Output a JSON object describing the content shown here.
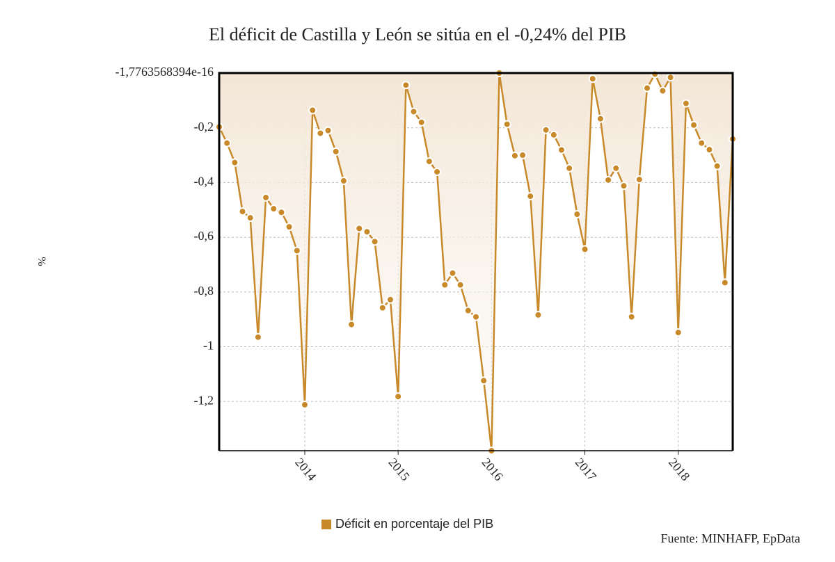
{
  "chart_data": {
    "type": "line",
    "title": "El déficit de Castilla y León se sitúa en el -0,24% del PIB",
    "y_label": "%",
    "source": "Fuente: MINHAFP, EpData",
    "x": [
      "2013-02",
      "2013-03",
      "2013-04",
      "2013-05",
      "2013-06",
      "2013-07",
      "2013-08",
      "2013-09",
      "2013-10",
      "2013-11",
      "2013-12",
      "2014-01",
      "2014-02",
      "2014-03",
      "2014-04",
      "2014-05",
      "2014-06",
      "2014-07",
      "2014-08",
      "2014-09",
      "2014-10",
      "2014-11",
      "2014-12",
      "2015-01",
      "2015-02",
      "2015-03",
      "2015-04",
      "2015-05",
      "2015-06",
      "2015-07",
      "2015-08",
      "2015-09",
      "2015-10",
      "2015-11",
      "2015-12",
      "2016-01",
      "2016-02",
      "2016-03",
      "2016-04",
      "2016-05",
      "2016-06",
      "2016-07",
      "2016-08",
      "2016-09",
      "2016-10",
      "2016-11",
      "2016-12",
      "2017-01",
      "2017-02",
      "2017-03",
      "2017-04",
      "2017-05",
      "2017-06",
      "2017-07",
      "2017-08",
      "2017-09",
      "2017-10",
      "2017-11",
      "2017-12",
      "2018-01",
      "2018-02",
      "2018-03",
      "2018-04",
      "2018-05",
      "2018-06",
      "2018-07",
      "2018-08"
    ],
    "series": [
      {
        "name": "Déficit en porcentaje del PIB",
        "color": "#c8892a",
        "values": [
          -0.197,
          -0.256,
          -0.327,
          -0.506,
          -0.529,
          -0.965,
          -0.455,
          -0.496,
          -0.509,
          -0.562,
          -0.649,
          -1.212,
          -0.136,
          -0.22,
          -0.21,
          -0.287,
          -0.394,
          -0.919,
          -0.568,
          -0.58,
          -0.616,
          -0.858,
          -0.828,
          -1.182,
          -0.044,
          -0.141,
          -0.18,
          -0.323,
          -0.361,
          -0.774,
          -0.731,
          -0.774,
          -0.868,
          -0.891,
          -1.124,
          -1.38,
          0,
          -0.187,
          -0.302,
          -0.3,
          -0.45,
          -0.884,
          -0.208,
          -0.226,
          -0.281,
          -0.348,
          -0.516,
          -0.644,
          -0.021,
          -0.167,
          -0.391,
          -0.348,
          -0.412,
          -0.891,
          -0.389,
          -0.055,
          -0.004,
          -0.065,
          -0.016,
          -0.948,
          -0.111,
          -0.19,
          -0.256,
          -0.28,
          -0.34,
          -0.766,
          -0.241
        ]
      }
    ],
    "xlim": [
      "2013-02",
      "2018-08"
    ],
    "xticks": [
      "2014",
      "2015",
      "2016",
      "2017",
      "2018"
    ],
    "ylim": [
      -1.38,
      0
    ],
    "yticks": [
      {
        "value": -1.7763568394e-16,
        "label": "-1,7763568394e-16"
      },
      {
        "value": -0.2,
        "label": "-0,2"
      },
      {
        "value": -0.4,
        "label": "-0,4"
      },
      {
        "value": -0.6,
        "label": "-0,6"
      },
      {
        "value": -0.8,
        "label": "-0,8"
      },
      {
        "value": -1,
        "label": "-1"
      },
      {
        "value": -1.2,
        "label": "-1,2"
      }
    ],
    "grid": true
  }
}
